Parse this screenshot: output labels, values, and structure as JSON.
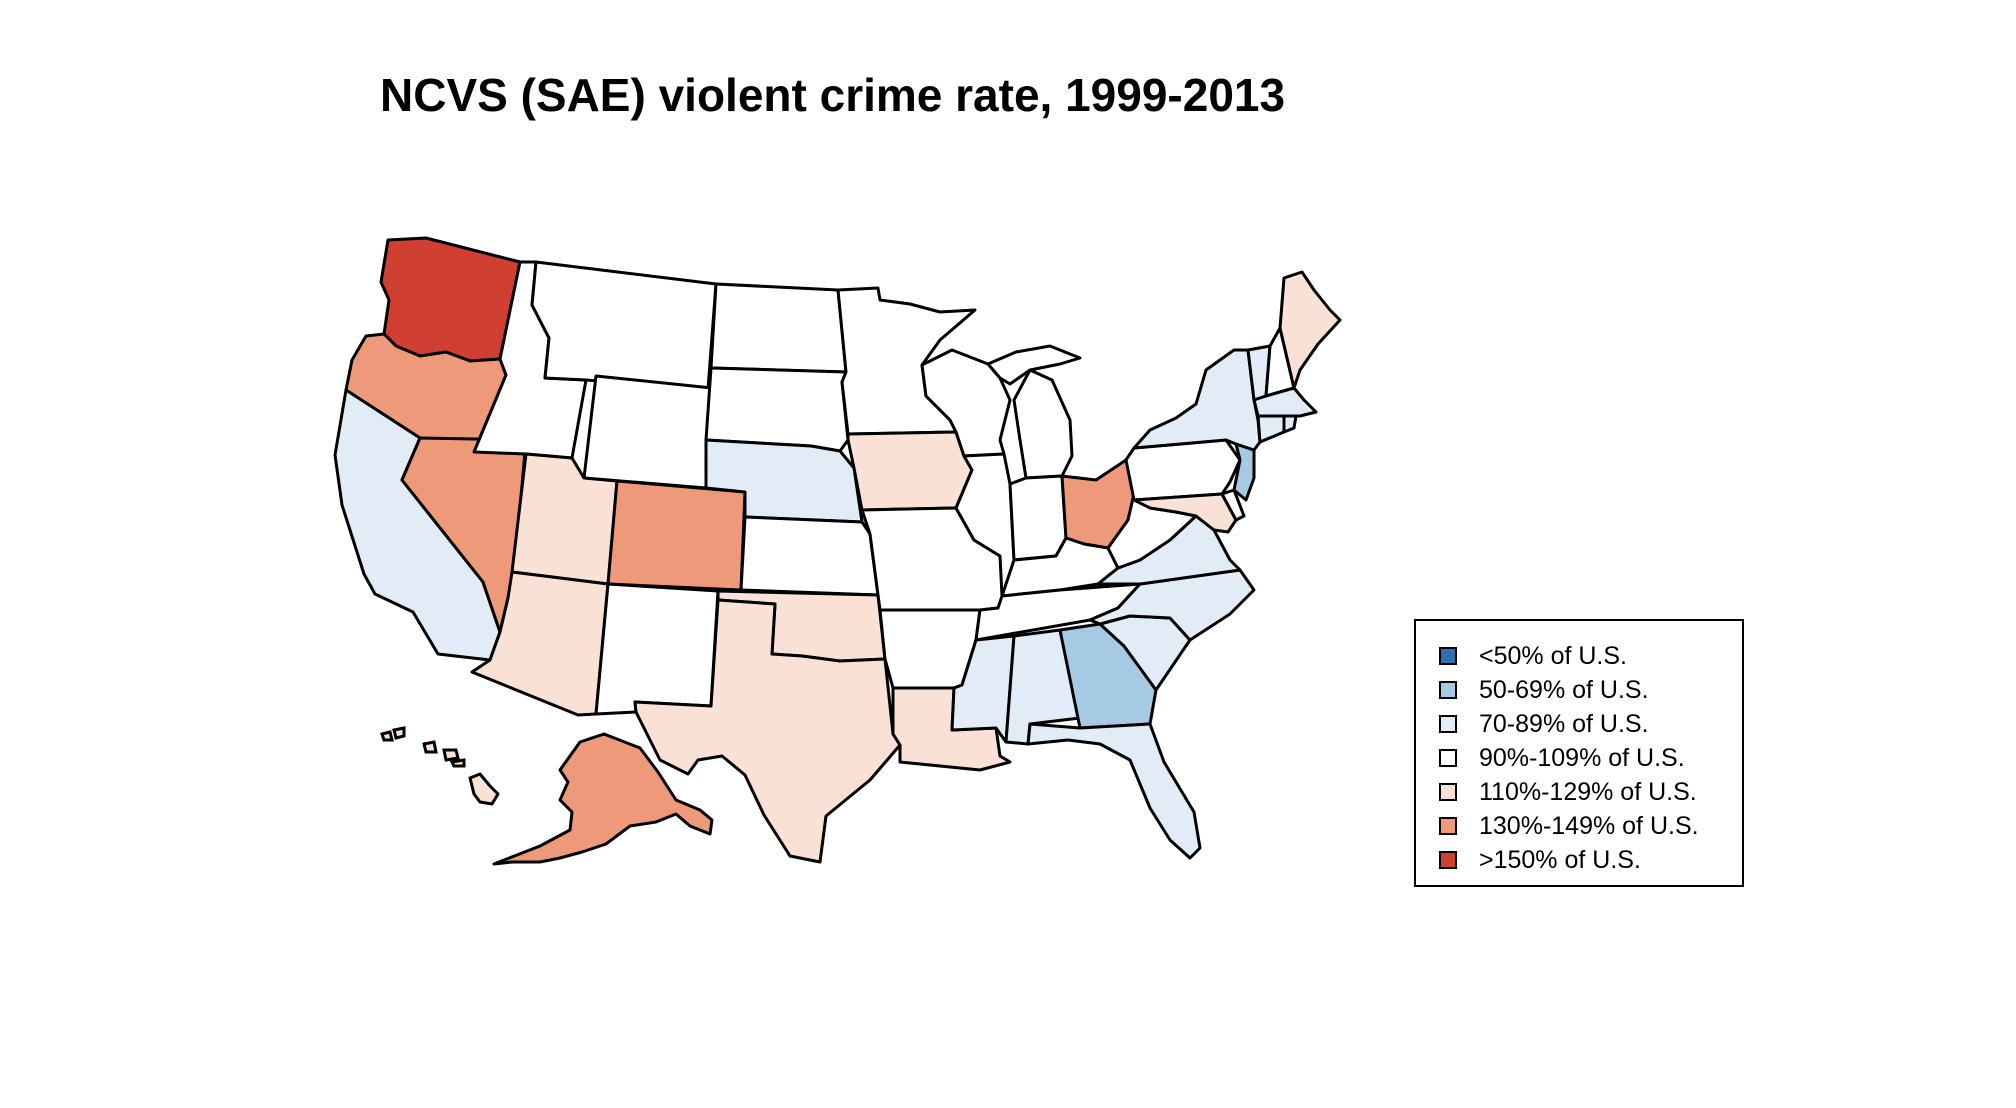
{
  "title": "NCVS (SAE) violent crime rate, 1999-2013",
  "colors": {
    "lt50": "#2f6fb0",
    "c50_69": "#a6cae3",
    "c70_89": "#e1ecf6",
    "c90_109": "#ffffff",
    "c110_129": "#f9e1d6",
    "c130_149": "#ee9a7a",
    "gt150": "#cf3f32"
  },
  "legend": [
    {
      "label": "<50% of U.S.",
      "color": "#2f6fb0"
    },
    {
      "label": "50-69% of U.S.",
      "color": "#a6cae3"
    },
    {
      "label": "70-89% of U.S.",
      "color": "#e1ecf6"
    },
    {
      "label": "90%-109% of U.S.",
      "color": "#ffffff"
    },
    {
      "label": "110%-129% of U.S.",
      "color": "#f9e1d6"
    },
    {
      "label": "130%-149% of U.S.",
      "color": "#ee9a7a"
    },
    {
      "label": ">150% of U.S.",
      "color": "#cf3f32"
    }
  ],
  "states": [
    {
      "name": "Washington",
      "category": ">150% of U.S."
    },
    {
      "name": "Oregon",
      "category": "130%-149% of U.S."
    },
    {
      "name": "California",
      "category": "70-89% of U.S."
    },
    {
      "name": "Nevada",
      "category": "130%-149% of U.S."
    },
    {
      "name": "Idaho",
      "category": "90%-109% of U.S."
    },
    {
      "name": "Montana",
      "category": "90%-109% of U.S."
    },
    {
      "name": "Wyoming",
      "category": "90%-109% of U.S."
    },
    {
      "name": "Utah",
      "category": "110%-129% of U.S."
    },
    {
      "name": "Arizona",
      "category": "110%-129% of U.S."
    },
    {
      "name": "Colorado",
      "category": "130%-149% of U.S."
    },
    {
      "name": "New Mexico",
      "category": "90%-109% of U.S."
    },
    {
      "name": "North Dakota",
      "category": "90%-109% of U.S."
    },
    {
      "name": "South Dakota",
      "category": "90%-109% of U.S."
    },
    {
      "name": "Nebraska",
      "category": "70-89% of U.S."
    },
    {
      "name": "Kansas",
      "category": "90%-109% of U.S."
    },
    {
      "name": "Oklahoma",
      "category": "110%-129% of U.S."
    },
    {
      "name": "Texas",
      "category": "110%-129% of U.S."
    },
    {
      "name": "Minnesota",
      "category": "90%-109% of U.S."
    },
    {
      "name": "Iowa",
      "category": "110%-129% of U.S."
    },
    {
      "name": "Missouri",
      "category": "90%-109% of U.S."
    },
    {
      "name": "Arkansas",
      "category": "90%-109% of U.S."
    },
    {
      "name": "Louisiana",
      "category": "110%-129% of U.S."
    },
    {
      "name": "Wisconsin",
      "category": "90%-109% of U.S."
    },
    {
      "name": "Illinois",
      "category": "90%-109% of U.S."
    },
    {
      "name": "Michigan",
      "category": "90%-109% of U.S."
    },
    {
      "name": "Indiana",
      "category": "90%-109% of U.S."
    },
    {
      "name": "Ohio",
      "category": "130%-149% of U.S."
    },
    {
      "name": "Kentucky",
      "category": "90%-109% of U.S."
    },
    {
      "name": "Tennessee",
      "category": "90%-109% of U.S."
    },
    {
      "name": "Mississippi",
      "category": "70-89% of U.S."
    },
    {
      "name": "Alabama",
      "category": "70-89% of U.S."
    },
    {
      "name": "Georgia",
      "category": "50-69% of U.S."
    },
    {
      "name": "Florida",
      "category": "70-89% of U.S."
    },
    {
      "name": "South Carolina",
      "category": "70-89% of U.S."
    },
    {
      "name": "North Carolina",
      "category": "70-89% of U.S."
    },
    {
      "name": "Virginia",
      "category": "70-89% of U.S."
    },
    {
      "name": "West Virginia",
      "category": "90%-109% of U.S."
    },
    {
      "name": "Maryland",
      "category": "110%-129% of U.S."
    },
    {
      "name": "Delaware",
      "category": "90%-109% of U.S."
    },
    {
      "name": "Pennsylvania",
      "category": "90%-109% of U.S."
    },
    {
      "name": "New Jersey",
      "category": "50-69% of U.S."
    },
    {
      "name": "New York",
      "category": "70-89% of U.S."
    },
    {
      "name": "Connecticut",
      "category": "70-89% of U.S."
    },
    {
      "name": "Rhode Island",
      "category": "70-89% of U.S."
    },
    {
      "name": "Massachusetts",
      "category": "70-89% of U.S."
    },
    {
      "name": "Vermont",
      "category": "70-89% of U.S."
    },
    {
      "name": "New Hampshire",
      "category": "90%-109% of U.S."
    },
    {
      "name": "Maine",
      "category": "110%-129% of U.S."
    },
    {
      "name": "Alaska",
      "category": "130%-149% of U.S."
    },
    {
      "name": "Hawaii",
      "category": "110%-129% of U.S."
    }
  ]
}
